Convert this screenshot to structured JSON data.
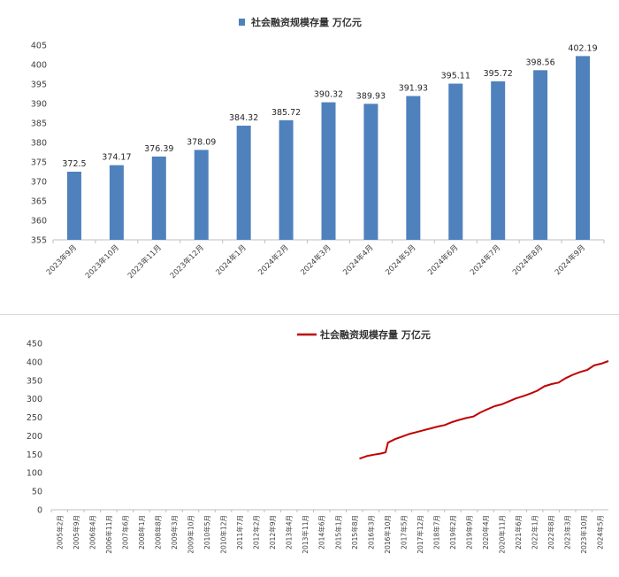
{
  "chart_data": [
    {
      "type": "bar",
      "legend": "社会融资规模存量 万亿元",
      "legend_position": "top",
      "color": "#4f81bd",
      "categories": [
        "2023年9月",
        "2023年10月",
        "2023年11月",
        "2023年12月",
        "2024年1月",
        "2024年2月",
        "2024年3月",
        "2024年4月",
        "2024年5月",
        "2024年6月",
        "2024年7月",
        "2024年8月",
        "2024年9月"
      ],
      "values": [
        372.5,
        374.17,
        376.39,
        378.09,
        384.32,
        385.72,
        390.32,
        389.93,
        391.93,
        395.11,
        395.72,
        398.56,
        402.19
      ],
      "value_labels": [
        "372.5",
        "374.17",
        "376.39",
        "378.09",
        "384.32",
        "385.72",
        "390.32",
        "389.93",
        "391.93",
        "395.11",
        "395.72",
        "398.56",
        "402.19"
      ],
      "ylim": [
        355,
        405
      ],
      "yticks": [
        "355",
        "360",
        "365",
        "370",
        "375",
        "380",
        "385",
        "390",
        "395",
        "400",
        "405"
      ],
      "grid": false
    },
    {
      "type": "line",
      "legend": "社会融资规模存量 万亿元",
      "legend_position": "top",
      "color": "#c00000",
      "ylim": [
        0,
        450
      ],
      "yticks": [
        "0",
        "50",
        "100",
        "150",
        "200",
        "250",
        "300",
        "350",
        "400",
        "450"
      ],
      "x_ticks": [
        "2005年2月",
        "2005年9月",
        "2006年4月",
        "2006年11月",
        "2007年6月",
        "2008年1月",
        "2008年8月",
        "2009年3月",
        "2009年10月",
        "2010年5月",
        "2010年12月",
        "2011年7月",
        "2012年2月",
        "2012年9月",
        "2013年4月",
        "2013年11月",
        "2014年6月",
        "2015年1月",
        "2015年8月",
        "2016年3月",
        "2016年10月",
        "2017年5月",
        "2017年12月",
        "2018年7月",
        "2019年2月",
        "2019年9月",
        "2020年4月",
        "2020年11月",
        "2021年6月",
        "2022年1月",
        "2022年8月",
        "2023年3月",
        "2023年10月",
        "2024年5月"
      ],
      "x_range": [
        "2005-02",
        "2024-09"
      ],
      "points": [
        [
          "2015-12",
          138.1
        ],
        [
          "2016-03",
          145.0
        ],
        [
          "2016-06",
          149.0
        ],
        [
          "2016-09",
          152.0
        ],
        [
          "2016-11",
          155.0
        ],
        [
          "2016-12",
          181.5
        ],
        [
          "2017-03",
          191.0
        ],
        [
          "2017-06",
          198.0
        ],
        [
          "2017-09",
          205.0
        ],
        [
          "2017-12",
          210.0
        ],
        [
          "2018-03",
          215.0
        ],
        [
          "2018-06",
          220.0
        ],
        [
          "2018-09",
          225.0
        ],
        [
          "2018-12",
          229.0
        ],
        [
          "2019-03",
          237.0
        ],
        [
          "2019-06",
          243.0
        ],
        [
          "2019-09",
          248.0
        ],
        [
          "2019-12",
          252.0
        ],
        [
          "2020-03",
          263.0
        ],
        [
          "2020-06",
          272.0
        ],
        [
          "2020-09",
          280.0
        ],
        [
          "2020-12",
          285.0
        ],
        [
          "2021-03",
          293.0
        ],
        [
          "2021-06",
          301.0
        ],
        [
          "2021-09",
          307.0
        ],
        [
          "2021-12",
          314.0
        ],
        [
          "2022-03",
          322.0
        ],
        [
          "2022-06",
          334.0
        ],
        [
          "2022-09",
          340.0
        ],
        [
          "2022-12",
          344.0
        ],
        [
          "2023-03",
          356.0
        ],
        [
          "2023-06",
          365.0
        ],
        [
          "2023-09",
          372.5
        ],
        [
          "2023-12",
          378.0
        ],
        [
          "2024-03",
          390.3
        ],
        [
          "2024-06",
          395.1
        ],
        [
          "2024-09",
          402.2
        ]
      ],
      "grid": false
    }
  ]
}
